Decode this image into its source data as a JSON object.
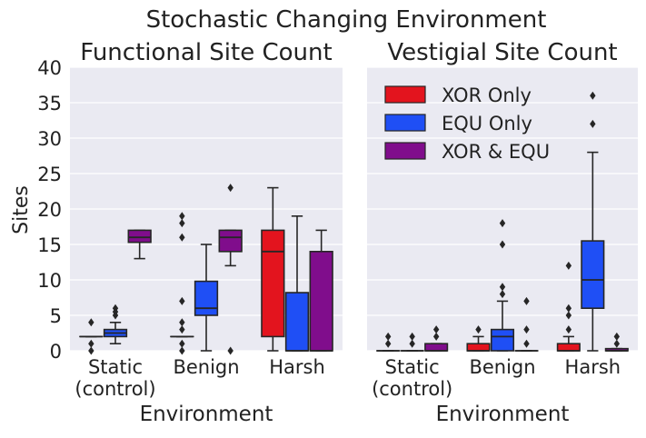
{
  "figure": {
    "suptitle": "Stochastic Changing Environment",
    "ylabel": "Sites",
    "legend": [
      "XOR Only",
      "EQU Only",
      "XOR & EQU"
    ],
    "colors": {
      "xor": "#e3141e",
      "equ": "#1f4ff5",
      "both": "#800d8c",
      "panel_bg": "#eaeaf2",
      "grid": "#ffffff",
      "edge": "#262626"
    }
  },
  "chart_data": [
    {
      "type": "box",
      "title": "Functional Site Count",
      "xlabel": "Environment",
      "ylabel": "Sites",
      "ylim": [
        0,
        40
      ],
      "yticks": [
        0,
        5,
        10,
        15,
        20,
        25,
        30,
        35,
        40
      ],
      "categories": [
        "Static\n(control)",
        "Benign",
        "Harsh"
      ],
      "series": [
        {
          "name": "XOR Only",
          "color": "#e3141e",
          "boxes": [
            {
              "q1": 2,
              "median": 2,
              "q3": 2,
              "whislo": 2,
              "whishi": 2,
              "fliers": [
                0,
                1,
                4
              ]
            },
            {
              "q1": 2,
              "median": 2,
              "q3": 2,
              "whislo": 2,
              "whishi": 2,
              "fliers": [
                0,
                1,
                3,
                4,
                7,
                16,
                18,
                19
              ]
            },
            {
              "q1": 2,
              "median": 14,
              "q3": 17,
              "whislo": 0,
              "whishi": 23,
              "fliers": []
            }
          ]
        },
        {
          "name": "EQU Only",
          "color": "#1f4ff5",
          "boxes": [
            {
              "q1": 2,
              "median": 2.5,
              "q3": 3,
              "whislo": 1,
              "whishi": 4,
              "fliers": [
                5,
                5.5,
                6
              ]
            },
            {
              "q1": 5,
              "median": 6,
              "q3": 9.8,
              "whislo": 0,
              "whishi": 15,
              "fliers": []
            },
            {
              "q1": 0,
              "median": 0,
              "q3": 8.2,
              "whislo": 0,
              "whishi": 19,
              "fliers": []
            }
          ]
        },
        {
          "name": "XOR & EQU",
          "color": "#800d8c",
          "boxes": [
            {
              "q1": 15.3,
              "median": 16,
              "q3": 17,
              "whislo": 13,
              "whishi": 17,
              "fliers": []
            },
            {
              "q1": 14,
              "median": 16,
              "q3": 17,
              "whislo": 12,
              "whishi": 17,
              "fliers": [
                0,
                23
              ]
            },
            {
              "q1": 0,
              "median": 0,
              "q3": 14,
              "whislo": 0,
              "whishi": 17,
              "fliers": []
            }
          ]
        }
      ]
    },
    {
      "type": "box",
      "title": "Vestigial Site Count",
      "xlabel": "Environment",
      "ylim": [
        0,
        40
      ],
      "categories": [
        "Static\n(control)",
        "Benign",
        "Harsh"
      ],
      "series": [
        {
          "name": "XOR Only",
          "color": "#e3141e",
          "boxes": [
            {
              "q1": 0,
              "median": 0,
              "q3": 0,
              "whislo": 0,
              "whishi": 0,
              "fliers": [
                1,
                2
              ]
            },
            {
              "q1": 0,
              "median": 0,
              "q3": 1,
              "whislo": 0,
              "whishi": 2,
              "fliers": [
                3
              ]
            },
            {
              "q1": 0,
              "median": 0,
              "q3": 1,
              "whislo": 0,
              "whishi": 2,
              "fliers": [
                3,
                5,
                6,
                12
              ]
            }
          ]
        },
        {
          "name": "EQU Only",
          "color": "#1f4ff5",
          "boxes": [
            {
              "q1": 0,
              "median": 0,
              "q3": 0,
              "whislo": 0,
              "whishi": 0,
              "fliers": [
                1,
                2
              ]
            },
            {
              "q1": 0,
              "median": 2,
              "q3": 3,
              "whislo": 0,
              "whishi": 7,
              "fliers": [
                8,
                9,
                15,
                18
              ]
            },
            {
              "q1": 6,
              "median": 10,
              "q3": 15.5,
              "whislo": 0,
              "whishi": 28,
              "fliers": [
                32,
                36
              ]
            }
          ]
        },
        {
          "name": "XOR & EQU",
          "color": "#800d8c",
          "boxes": [
            {
              "q1": 0,
              "median": 0,
              "q3": 1,
              "whislo": 0,
              "whishi": 1,
              "fliers": [
                2,
                3
              ]
            },
            {
              "q1": 0,
              "median": 0,
              "q3": 0,
              "whislo": 0,
              "whishi": 0,
              "fliers": [
                1,
                3,
                7
              ]
            },
            {
              "q1": 0,
              "median": 0,
              "q3": 0.3,
              "whislo": 0,
              "whishi": 0.3,
              "fliers": [
                1,
                2
              ]
            }
          ]
        }
      ]
    }
  ]
}
